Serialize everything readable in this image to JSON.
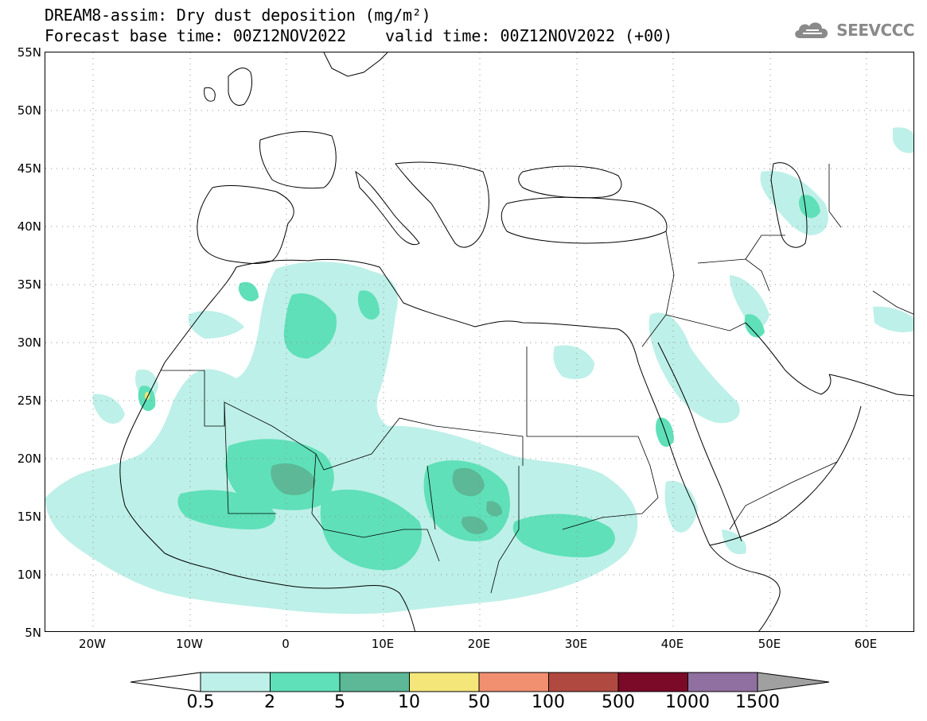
{
  "header": {
    "title": "DREAM8-assim: Dry dust deposition (mg/m²)",
    "forecast_base": "Forecast base time: 00Z12NOV2022",
    "valid_time": "valid time: 00Z12NOV2022 (+00)"
  },
  "logo": {
    "text": "SEEVCCC",
    "icon": "cloud-icon",
    "color": "#8a8a8a"
  },
  "map": {
    "projection": "lat-lon",
    "lon_range": [
      -25,
      65
    ],
    "lat_range": [
      5,
      55
    ],
    "lat_labels": [
      "55N",
      "50N",
      "45N",
      "40N",
      "35N",
      "30N",
      "25N",
      "20N",
      "15N",
      "10N",
      "5N"
    ],
    "lon_labels": [
      "20W",
      "10W",
      "0",
      "10E",
      "20E",
      "30E",
      "40E",
      "50E",
      "60E"
    ],
    "grid": "dotted",
    "field": "Dry dust deposition",
    "units": "mg/m²"
  },
  "legend": {
    "levels": [
      "0.5",
      "2",
      "5",
      "10",
      "50",
      "100",
      "500",
      "1000",
      "1500"
    ],
    "colors": [
      "#bdf0e8",
      "#5fe0b8",
      "#5cb896",
      "#f5e67a",
      "#f09070",
      "#b04a40",
      "#7a0a28",
      "#9070a0",
      "#a0a0a0"
    ]
  }
}
